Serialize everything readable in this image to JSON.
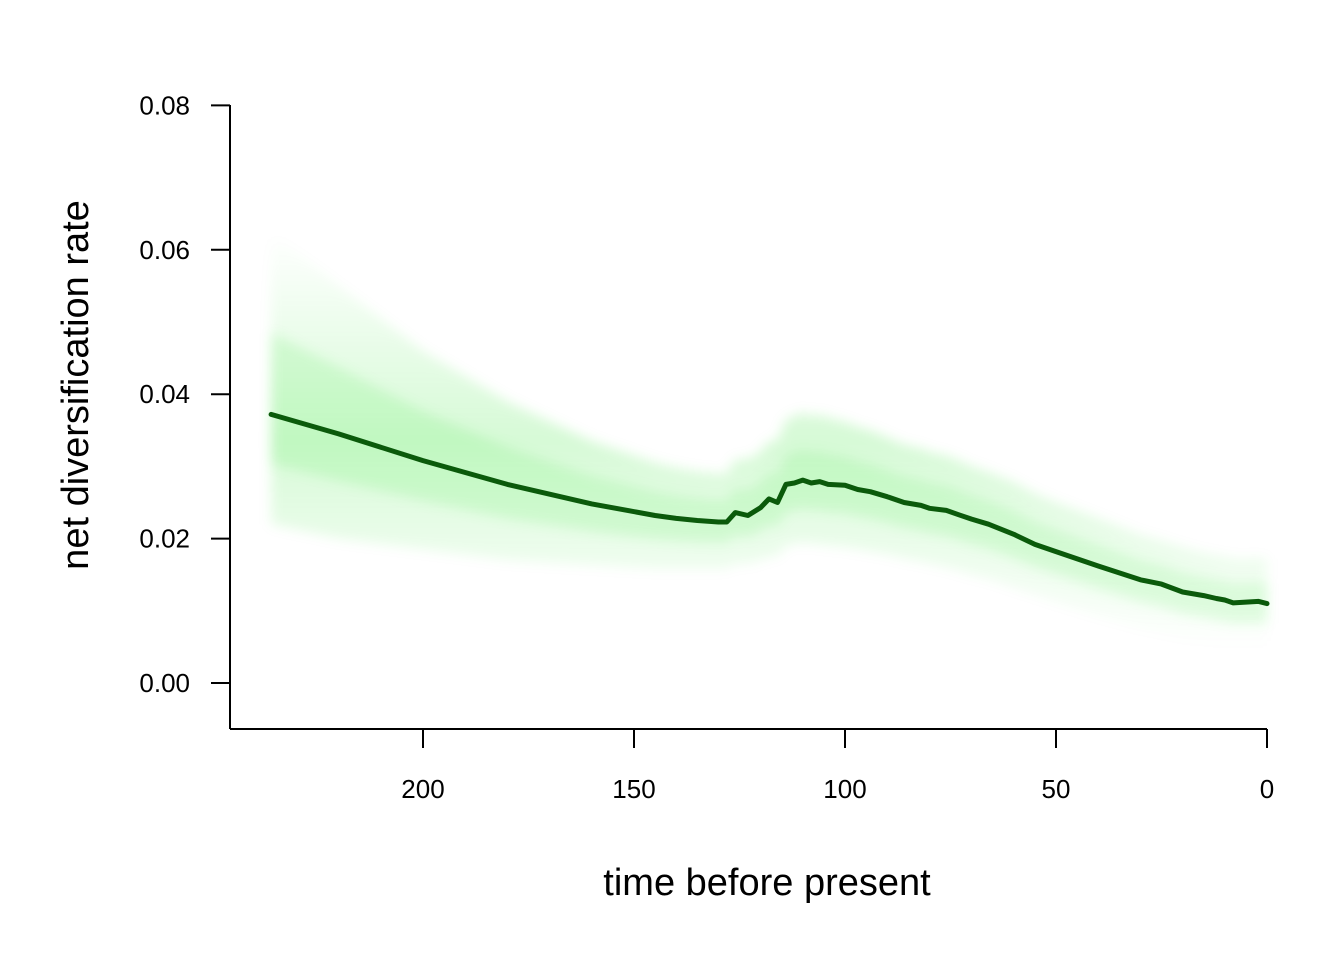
{
  "chart_data": {
    "type": "line",
    "title": "",
    "xlabel": "time before present",
    "ylabel": "net diversification rate",
    "x_reversed": true,
    "xlim": [
      245.5,
      0
    ],
    "ylim": [
      -0.0065,
      0.08
    ],
    "xticks": [
      200,
      150,
      100,
      50,
      0
    ],
    "xtick_labels": [
      "200",
      "150",
      "100",
      "50",
      "0"
    ],
    "yticks": [
      0.0,
      0.02,
      0.04,
      0.06,
      0.08
    ],
    "ytick_labels": [
      "0.00",
      "0.02",
      "0.04",
      "0.06",
      "0.08"
    ],
    "grid": false,
    "legend": "none",
    "colors": {
      "line": "#0b5a0b",
      "band": "#00dd00"
    },
    "series": [
      {
        "x": [
          236,
          220,
          200,
          180,
          160,
          145,
          140,
          135,
          130,
          128,
          126,
          123,
          120,
          118,
          116,
          114,
          112,
          110,
          108,
          106,
          104,
          100,
          97,
          94,
          90,
          86,
          82,
          80,
          76,
          73,
          70,
          66,
          60,
          55,
          50,
          40,
          30,
          25,
          20,
          15,
          12,
          10,
          8,
          5,
          2,
          0
        ],
        "y": [
          0.0372,
          0.0345,
          0.0308,
          0.0275,
          0.0248,
          0.0232,
          0.0228,
          0.0225,
          0.0223,
          0.0223,
          0.0236,
          0.0232,
          0.0243,
          0.0255,
          0.025,
          0.0275,
          0.0277,
          0.0281,
          0.0277,
          0.0279,
          0.0275,
          0.0274,
          0.0268,
          0.0265,
          0.0258,
          0.025,
          0.0246,
          0.0242,
          0.0239,
          0.0233,
          0.0227,
          0.022,
          0.0206,
          0.0192,
          0.0182,
          0.0162,
          0.0143,
          0.0137,
          0.0126,
          0.0121,
          0.0117,
          0.0115,
          0.0111,
          0.0112,
          0.0113,
          0.011
        ],
        "band_lower": [
          0.022,
          0.02,
          0.0185,
          0.017,
          0.0163,
          0.0158,
          0.0158,
          0.0158,
          0.0158,
          0.0158,
          0.0165,
          0.0165,
          0.017,
          0.0175,
          0.0175,
          0.019,
          0.0192,
          0.0195,
          0.0193,
          0.0192,
          0.019,
          0.0188,
          0.0185,
          0.0182,
          0.0178,
          0.0172,
          0.0168,
          0.0165,
          0.016,
          0.0155,
          0.015,
          0.0144,
          0.0132,
          0.0122,
          0.0112,
          0.0093,
          0.0075,
          0.0068,
          0.006,
          0.0055,
          0.0052,
          0.005,
          0.0048,
          0.0048,
          0.0048,
          0.0048
        ],
        "band_upper": [
          0.0625,
          0.055,
          0.046,
          0.039,
          0.0335,
          0.0305,
          0.0298,
          0.0293,
          0.029,
          0.029,
          0.031,
          0.031,
          0.032,
          0.0335,
          0.0335,
          0.0365,
          0.037,
          0.0375,
          0.037,
          0.0372,
          0.0368,
          0.0362,
          0.0355,
          0.035,
          0.034,
          0.033,
          0.0325,
          0.032,
          0.0315,
          0.0308,
          0.03,
          0.0292,
          0.0278,
          0.0262,
          0.025,
          0.0228,
          0.0205,
          0.0197,
          0.0188,
          0.018,
          0.0177,
          0.0175,
          0.0172,
          0.0172,
          0.0173,
          0.0172
        ]
      }
    ]
  }
}
